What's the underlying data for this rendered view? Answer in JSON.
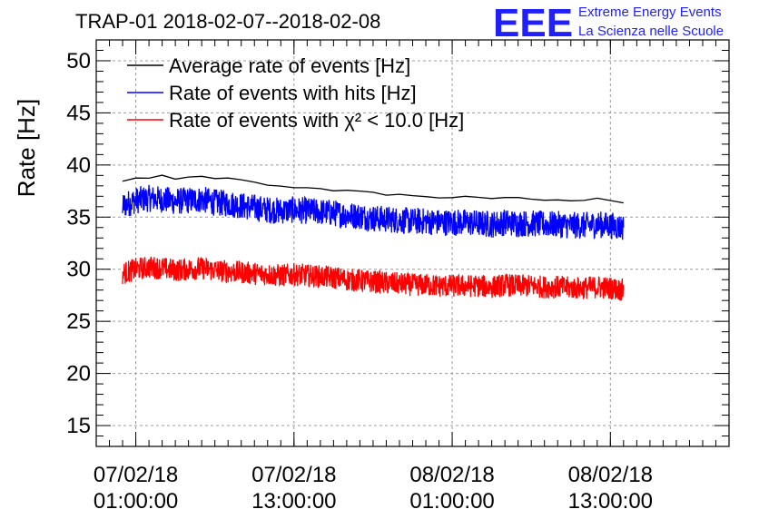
{
  "chart_data": {
    "type": "line",
    "title": "TRAP-01 2018-02-07--2018-02-08",
    "ylabel": "Rate [Hz]",
    "xlabel": "",
    "ylim": [
      13,
      52
    ],
    "yticks": [
      15,
      20,
      25,
      30,
      35,
      40,
      45,
      50
    ],
    "xlim": [
      "2018-02-06 22:00:00",
      "2018-02-08 22:00:00"
    ],
    "xticks": [
      {
        "time": "2018-02-07 01:00:00",
        "label_date": "07/02/18",
        "label_time": "01:00:00"
      },
      {
        "time": "2018-02-07 13:00:00",
        "label_date": "07/02/18",
        "label_time": "13:00:00"
      },
      {
        "time": "2018-02-08 01:00:00",
        "label_date": "08/02/18",
        "label_time": "01:00:00"
      },
      {
        "time": "2018-02-08 13:00:00",
        "label_date": "08/02/18",
        "label_time": "13:00:00"
      }
    ],
    "grid": true,
    "legend_position": "top-left",
    "series": [
      {
        "name": "Average rate of events [Hz]",
        "color": "#000000",
        "style": "smooth",
        "x": [
          "2018-02-07 00:00:00",
          "2018-02-07 01:00:00",
          "2018-02-07 02:00:00",
          "2018-02-07 03:00:00",
          "2018-02-07 04:00:00",
          "2018-02-07 05:00:00",
          "2018-02-07 06:00:00",
          "2018-02-07 07:00:00",
          "2018-02-07 08:00:00",
          "2018-02-07 09:00:00",
          "2018-02-07 10:00:00",
          "2018-02-07 11:00:00",
          "2018-02-07 12:00:00",
          "2018-02-07 13:00:00",
          "2018-02-07 14:00:00",
          "2018-02-07 15:00:00",
          "2018-02-07 16:00:00",
          "2018-02-07 17:00:00",
          "2018-02-07 18:00:00",
          "2018-02-07 19:00:00",
          "2018-02-07 20:00:00",
          "2018-02-07 21:00:00",
          "2018-02-07 22:00:00",
          "2018-02-07 23:00:00",
          "2018-02-08 00:00:00",
          "2018-02-08 01:00:00",
          "2018-02-08 02:00:00",
          "2018-02-08 03:00:00",
          "2018-02-08 04:00:00",
          "2018-02-08 05:00:00",
          "2018-02-08 06:00:00",
          "2018-02-08 07:00:00",
          "2018-02-08 08:00:00",
          "2018-02-08 09:00:00",
          "2018-02-08 10:00:00",
          "2018-02-08 11:00:00",
          "2018-02-08 12:00:00",
          "2018-02-08 13:00:00",
          "2018-02-08 14:00:00"
        ],
        "values": [
          38.4,
          38.8,
          38.7,
          38.9,
          38.6,
          38.8,
          39.0,
          38.6,
          38.7,
          38.5,
          38.3,
          38.1,
          37.9,
          37.9,
          37.8,
          37.8,
          37.6,
          37.5,
          37.4,
          37.3,
          37.2,
          37.2,
          37.0,
          37.0,
          36.9,
          36.9,
          36.9,
          36.8,
          36.8,
          36.9,
          36.8,
          36.8,
          36.7,
          36.7,
          36.6,
          36.6,
          36.7,
          36.6,
          36.3
        ]
      },
      {
        "name": "Rate of events with hits [Hz]",
        "color": "#0000ff",
        "style": "noisy",
        "x": [
          "2018-02-07 00:00:00",
          "2018-02-07 01:00:00",
          "2018-02-07 02:00:00",
          "2018-02-07 03:00:00",
          "2018-02-07 04:00:00",
          "2018-02-07 05:00:00",
          "2018-02-07 06:00:00",
          "2018-02-07 07:00:00",
          "2018-02-07 08:00:00",
          "2018-02-07 09:00:00",
          "2018-02-07 10:00:00",
          "2018-02-07 11:00:00",
          "2018-02-07 12:00:00",
          "2018-02-07 13:00:00",
          "2018-02-07 14:00:00",
          "2018-02-07 15:00:00",
          "2018-02-07 16:00:00",
          "2018-02-07 17:00:00",
          "2018-02-07 18:00:00",
          "2018-02-07 19:00:00",
          "2018-02-07 20:00:00",
          "2018-02-07 21:00:00",
          "2018-02-07 22:00:00",
          "2018-02-07 23:00:00",
          "2018-02-08 00:00:00",
          "2018-02-08 01:00:00",
          "2018-02-08 02:00:00",
          "2018-02-08 03:00:00",
          "2018-02-08 04:00:00",
          "2018-02-08 05:00:00",
          "2018-02-08 06:00:00",
          "2018-02-08 07:00:00",
          "2018-02-08 08:00:00",
          "2018-02-08 09:00:00",
          "2018-02-08 10:00:00",
          "2018-02-08 11:00:00",
          "2018-02-08 12:00:00",
          "2018-02-08 13:00:00",
          "2018-02-08 14:00:00"
        ],
        "values": [
          36.1,
          36.6,
          36.8,
          36.7,
          36.5,
          36.6,
          36.7,
          36.4,
          36.3,
          36.1,
          35.9,
          35.7,
          35.6,
          35.7,
          35.6,
          35.5,
          35.4,
          35.2,
          35.1,
          34.9,
          34.8,
          34.7,
          34.6,
          34.6,
          34.5,
          34.5,
          34.5,
          34.4,
          34.3,
          34.5,
          34.4,
          34.4,
          34.3,
          34.3,
          34.2,
          34.2,
          34.3,
          34.2,
          34.0
        ]
      },
      {
        "name": "Rate of events with χ² < 10.0 [Hz]",
        "color": "#ff0000",
        "style": "noisy",
        "x": [
          "2018-02-07 00:00:00",
          "2018-02-07 01:00:00",
          "2018-02-07 02:00:00",
          "2018-02-07 03:00:00",
          "2018-02-07 04:00:00",
          "2018-02-07 05:00:00",
          "2018-02-07 06:00:00",
          "2018-02-07 07:00:00",
          "2018-02-07 08:00:00",
          "2018-02-07 09:00:00",
          "2018-02-07 10:00:00",
          "2018-02-07 11:00:00",
          "2018-02-07 12:00:00",
          "2018-02-07 13:00:00",
          "2018-02-07 14:00:00",
          "2018-02-07 15:00:00",
          "2018-02-07 16:00:00",
          "2018-02-07 17:00:00",
          "2018-02-07 18:00:00",
          "2018-02-07 19:00:00",
          "2018-02-07 20:00:00",
          "2018-02-07 21:00:00",
          "2018-02-07 22:00:00",
          "2018-02-07 23:00:00",
          "2018-02-08 00:00:00",
          "2018-02-08 01:00:00",
          "2018-02-08 02:00:00",
          "2018-02-08 03:00:00",
          "2018-02-08 04:00:00",
          "2018-02-08 05:00:00",
          "2018-02-08 06:00:00",
          "2018-02-08 07:00:00",
          "2018-02-08 08:00:00",
          "2018-02-08 09:00:00",
          "2018-02-08 10:00:00",
          "2018-02-08 11:00:00",
          "2018-02-08 12:00:00",
          "2018-02-08 13:00:00",
          "2018-02-08 14:00:00"
        ],
        "values": [
          29.6,
          30.0,
          30.2,
          30.1,
          29.9,
          30.0,
          30.1,
          29.9,
          29.8,
          29.7,
          29.6,
          29.5,
          29.4,
          29.5,
          29.4,
          29.3,
          29.2,
          29.0,
          28.9,
          28.8,
          28.7,
          28.6,
          28.5,
          28.5,
          28.4,
          28.4,
          28.4,
          28.4,
          28.3,
          28.5,
          28.4,
          28.4,
          28.3,
          28.3,
          28.2,
          28.2,
          28.3,
          28.2,
          28.0
        ]
      }
    ]
  },
  "logo": {
    "mark": "EEE",
    "line1": "Extreme Energy Events",
    "line2": "La Scienza nelle Scuole",
    "color": "#1f1fff"
  }
}
